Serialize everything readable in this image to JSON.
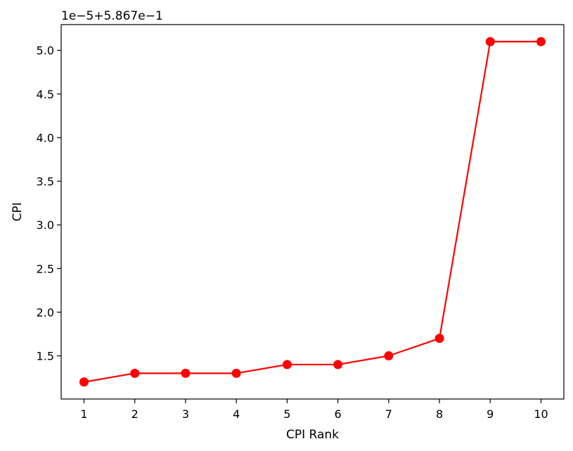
{
  "chart_data": {
    "type": "line",
    "xlabel": "CPI Rank",
    "ylabel": "CPI",
    "offset_text": "1e−5+5.867e−1",
    "x": [
      1,
      2,
      3,
      4,
      5,
      6,
      7,
      8,
      9,
      10
    ],
    "y_display": [
      1.2,
      1.3,
      1.3,
      1.3,
      1.4,
      1.4,
      1.5,
      1.7,
      5.1,
      5.1
    ],
    "xlim": [
      0.55,
      10.45
    ],
    "ylim": [
      1.005,
      5.295
    ],
    "x_ticks": [
      1,
      2,
      3,
      4,
      5,
      6,
      7,
      8,
      9,
      10
    ],
    "x_tick_labels": [
      "1",
      "2",
      "3",
      "4",
      "5",
      "6",
      "7",
      "8",
      "9",
      "10"
    ],
    "y_ticks": [
      1.5,
      2.0,
      2.5,
      3.0,
      3.5,
      4.0,
      4.5,
      5.0
    ],
    "y_tick_labels": [
      "1.5",
      "2.0",
      "2.5",
      "3.0",
      "3.5",
      "4.0",
      "4.5",
      "5.0"
    ],
    "grid": false,
    "series": [
      {
        "color": "#ff0000",
        "marker": "circle"
      }
    ]
  }
}
